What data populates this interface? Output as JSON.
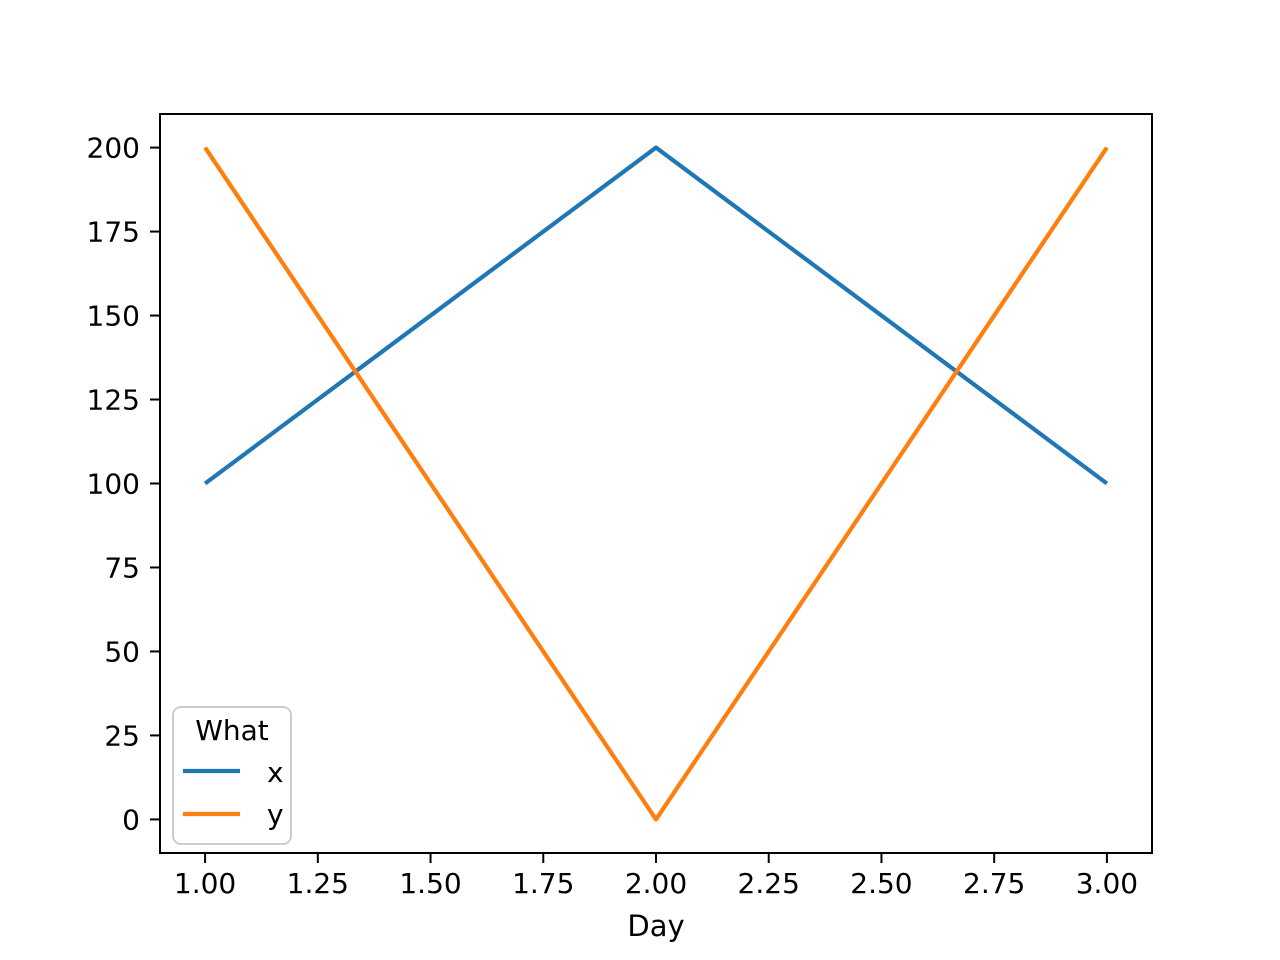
{
  "figure": {
    "background": "#ffffff"
  },
  "chart_data": {
    "type": "line",
    "title": "",
    "xlabel": "Day",
    "ylabel": "",
    "x": [
      1,
      2,
      3
    ],
    "series": [
      {
        "name": "x",
        "color": "#1f77b4",
        "values": [
          100,
          200,
          100
        ]
      },
      {
        "name": "y",
        "color": "#ff7f0e",
        "values": [
          200,
          0,
          200
        ]
      }
    ],
    "xlim": [
      0.9,
      3.1
    ],
    "ylim": [
      -10,
      210
    ],
    "xticks": {
      "values": [
        1.0,
        1.25,
        1.5,
        1.75,
        2.0,
        2.25,
        2.5,
        2.75,
        3.0
      ],
      "labels": [
        "1.00",
        "1.25",
        "1.50",
        "1.75",
        "2.00",
        "2.25",
        "2.50",
        "2.75",
        "3.00"
      ]
    },
    "yticks": {
      "values": [
        0,
        25,
        50,
        75,
        100,
        125,
        150,
        175,
        200
      ],
      "labels": [
        "0",
        "25",
        "50",
        "75",
        "100",
        "125",
        "150",
        "175",
        "200"
      ]
    },
    "grid": false,
    "legend": {
      "title": "What",
      "position": "lower left",
      "entries": [
        "x",
        "y"
      ]
    }
  },
  "style": {
    "axis_color": "#000000",
    "text_color": "#000000",
    "legend_border": "#cccccc",
    "legend_bg": "#ffffff"
  }
}
